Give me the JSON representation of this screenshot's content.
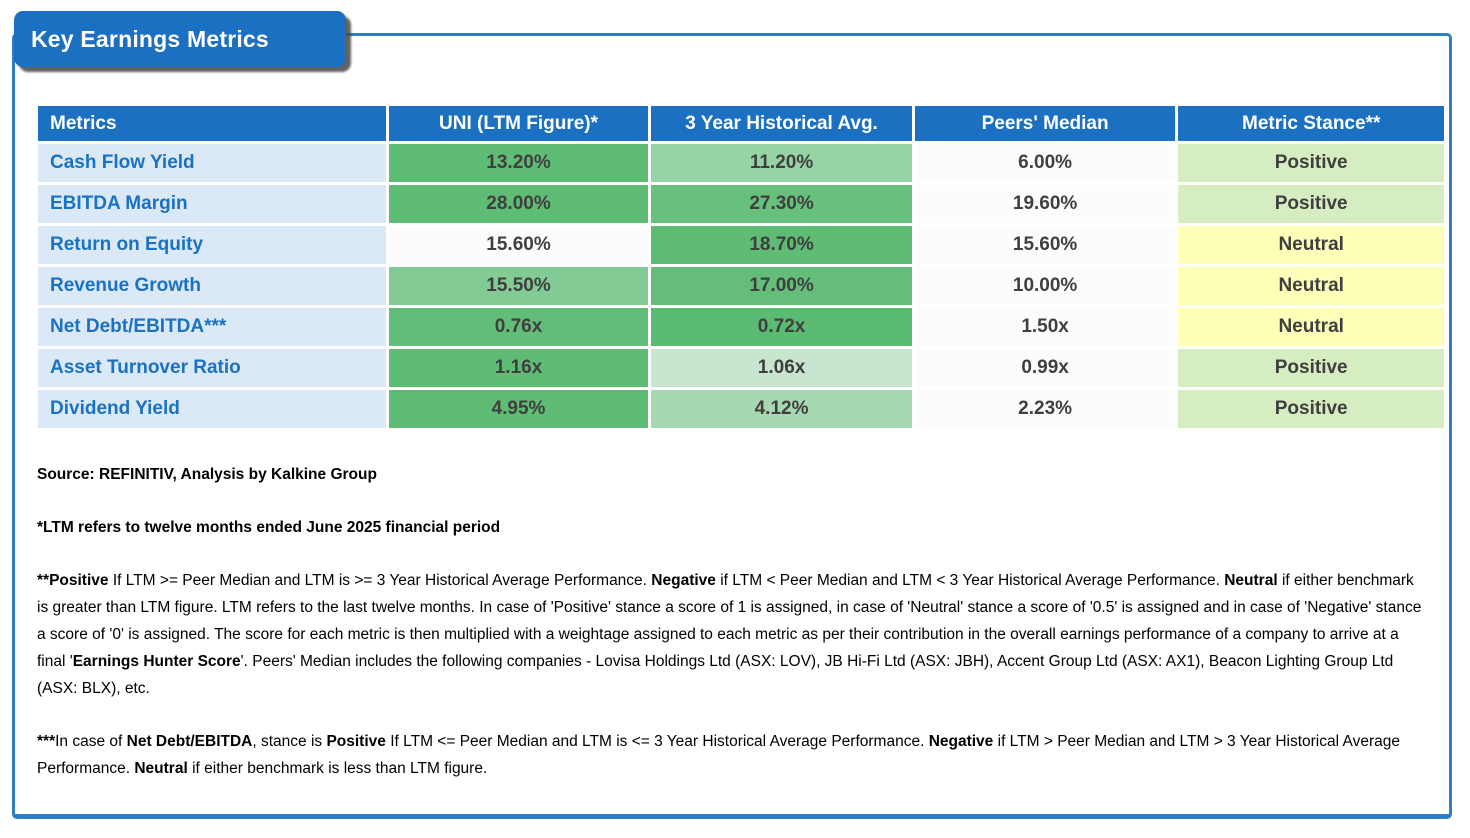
{
  "title": "Key Earnings Metrics",
  "colors": {
    "tab_bg": "#1c70c1",
    "card_border": "#2e7fc6",
    "header_bg": "#1c70c1",
    "header_text": "#ffffff",
    "label_bg": "#dbe8f6",
    "label_text": "#1a72c4",
    "value_text": "#3f3f3f",
    "positive_bg": "#d6edc2",
    "neutral_bg": "#feffb8",
    "green_strong": "#5ebc74",
    "peers_bg": "#fcfcfc"
  },
  "table": {
    "headers": [
      "Metrics",
      "UNI (LTM Figure)*",
      "3 Year Historical Avg.",
      "Peers' Median",
      "Metric Stance**"
    ],
    "rows": [
      {
        "metric": "Cash Flow Yield",
        "uni": "13.20%",
        "uni_bg": "#5ebc74",
        "hist": "11.20%",
        "hist_bg": "#96d4a6",
        "peers": "6.00%",
        "peers_bg": "#fcfcfc",
        "stance": "Positive",
        "stance_bg": "#d6edc2"
      },
      {
        "metric": "EBITDA Margin",
        "uni": "28.00%",
        "uni_bg": "#5ebc74",
        "hist": "27.30%",
        "hist_bg": "#67c07c",
        "peers": "19.60%",
        "peers_bg": "#fcfcfc",
        "stance": "Positive",
        "stance_bg": "#d6edc2"
      },
      {
        "metric": "Return on Equity",
        "uni": "15.60%",
        "uni_bg": "#fcfcfc",
        "hist": "18.70%",
        "hist_bg": "#5ebc74",
        "peers": "15.60%",
        "peers_bg": "#fcfcfc",
        "stance": "Neutral",
        "stance_bg": "#feffb8"
      },
      {
        "metric": "Revenue Growth",
        "uni": "15.50%",
        "uni_bg": "#83cb94",
        "hist": "17.00%",
        "hist_bg": "#64be7a",
        "peers": "10.00%",
        "peers_bg": "#fcfcfc",
        "stance": "Neutral",
        "stance_bg": "#feffb8"
      },
      {
        "metric": "Net Debt/EBITDA***",
        "uni": "0.76x",
        "uni_bg": "#61bd77",
        "hist": "0.72x",
        "hist_bg": "#5cbb72",
        "peers": "1.50x",
        "peers_bg": "#fcfcfc",
        "stance": "Neutral",
        "stance_bg": "#feffb8"
      },
      {
        "metric": "Asset Turnover Ratio",
        "uni": "1.16x",
        "uni_bg": "#5ebc74",
        "hist": "1.06x",
        "hist_bg": "#c8e6cf",
        "peers": "0.99x",
        "peers_bg": "#fcfcfc",
        "stance": "Positive",
        "stance_bg": "#d6edc2"
      },
      {
        "metric": "Dividend Yield",
        "uni": "4.95%",
        "uni_bg": "#5ebc74",
        "hist": "4.12%",
        "hist_bg": "#a6d8b2",
        "peers": "2.23%",
        "peers_bg": "#fcfcfc",
        "stance": "Positive",
        "stance_bg": "#d6edc2"
      }
    ]
  },
  "footnotes": {
    "source": [
      {
        "t": "Source: REFINITIV, Analysis by Kalkine Group",
        "b": true
      }
    ],
    "ltm": [
      {
        "t": "*LTM refers to twelve months ended June 2025 financial period",
        "b": true
      }
    ],
    "stance_note": [
      {
        "t": "**Positive",
        "b": true
      },
      {
        "t": " If LTM >= Peer Median and LTM is >= 3 Year Historical Average Performance. ",
        "b": false
      },
      {
        "t": "Negative",
        "b": true
      },
      {
        "t": " if LTM < Peer Median and LTM < 3 Year Historical Average Performance. ",
        "b": false
      },
      {
        "t": "Neutral",
        "b": true
      },
      {
        "t": " if either benchmark is greater than LTM figure. LTM refers to the last twelve months. In case of 'Positive' stance a score of 1 is assigned, in case of 'Neutral' stance a score of '0.5' is assigned and in case of 'Negative' stance a score of '0' is assigned. The score for each metric is then multiplied with a weightage assigned to each metric as per their contribution in the overall earnings performance of a company to arrive at a final '",
        "b": false
      },
      {
        "t": "Earnings Hunter Score",
        "b": true
      },
      {
        "t": "'. Peers' Median includes the following companies - Lovisa Holdings Ltd (ASX: LOV), JB Hi-Fi Ltd (ASX: JBH), Accent Group Ltd (ASX: AX1), Beacon Lighting Group Ltd (ASX: BLX), etc.",
        "b": false
      }
    ],
    "netdebt_note": [
      {
        "t": "***",
        "b": true
      },
      {
        "t": "In case of ",
        "b": false
      },
      {
        "t": "Net Debt/EBITDA",
        "b": true
      },
      {
        "t": ", stance is ",
        "b": false
      },
      {
        "t": "Positive",
        "b": true
      },
      {
        "t": " If LTM <= Peer Median and LTM is <= 3 Year Historical Average Performance. ",
        "b": false
      },
      {
        "t": "Negative",
        "b": true
      },
      {
        "t": " if LTM > Peer Median and LTM > 3 Year Historical Average Performance. ",
        "b": false
      },
      {
        "t": "Neutral",
        "b": true
      },
      {
        "t": " if either benchmark is less than LTM figure.",
        "b": false
      }
    ]
  },
  "chart_data": {
    "type": "table",
    "title": "Key Earnings Metrics",
    "columns": [
      "Metrics",
      "UNI (LTM Figure)*",
      "3 Year Historical Avg.",
      "Peers' Median",
      "Metric Stance**"
    ],
    "rows": [
      [
        "Cash Flow Yield",
        "13.20%",
        "11.20%",
        "6.00%",
        "Positive"
      ],
      [
        "EBITDA Margin",
        "28.00%",
        "27.30%",
        "19.60%",
        "Positive"
      ],
      [
        "Return on Equity",
        "15.60%",
        "18.70%",
        "15.60%",
        "Neutral"
      ],
      [
        "Revenue Growth",
        "15.50%",
        "17.00%",
        "10.00%",
        "Neutral"
      ],
      [
        "Net Debt/EBITDA***",
        "0.76x",
        "0.72x",
        "1.50x",
        "Neutral"
      ],
      [
        "Asset Turnover Ratio",
        "1.16x",
        "1.06x",
        "0.99x",
        "Positive"
      ],
      [
        "Dividend Yield",
        "4.95%",
        "4.12%",
        "2.23%",
        "Positive"
      ]
    ]
  }
}
